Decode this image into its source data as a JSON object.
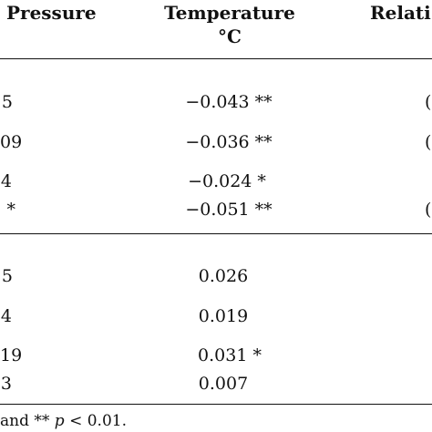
{
  "headers": {
    "pressure": "Pressure",
    "temperature": "Temperature",
    "temperature_unit": "°C",
    "relative": "Relati"
  },
  "rows": [
    {
      "pressure": "5",
      "temperature": "−0.043 **",
      "relative": "("
    },
    {
      "pressure": "09",
      "temperature": "−0.036 **",
      "relative": "("
    },
    {
      "pressure": "4",
      "temperature": "−0.024 *",
      "relative": ""
    },
    {
      "pressure": " *",
      "temperature": "−0.051 **",
      "relative": "("
    },
    {
      "pressure": "5",
      "temperature": "0.026",
      "relative": ""
    },
    {
      "pressure": "4",
      "temperature": "0.019",
      "relative": ""
    },
    {
      "pressure": "19",
      "temperature": "0.031 *",
      "relative": ""
    },
    {
      "pressure": "3",
      "temperature": "0.007",
      "relative": ""
    }
  ],
  "footnote": {
    "prefix": "and ** ",
    "p": "p",
    "suffix": " < 0.01."
  }
}
